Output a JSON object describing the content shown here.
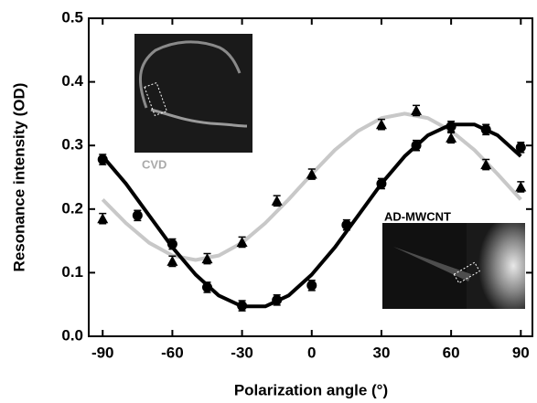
{
  "chart_data": {
    "type": "scatter",
    "xlabel": "Polarization angle (°)",
    "ylabel": "Resonance intensity (OD)",
    "xlim": [
      -96,
      95
    ],
    "ylim": [
      0,
      0.5
    ],
    "xticks": [
      -90,
      -60,
      -30,
      0,
      30,
      60,
      90
    ],
    "yticks": [
      {
        "value": 0,
        "label": "0.0"
      },
      0.1,
      0.2,
      0.3,
      0.4,
      0.5
    ],
    "series": [
      {
        "name": "CVD",
        "style": "fit",
        "color": "#c8c8c8",
        "x": [
          -90,
          -80,
          -70,
          -60,
          -50,
          -40,
          -30,
          -20,
          -10,
          0,
          10,
          20,
          30,
          40,
          50,
          60,
          70,
          80,
          90
        ],
        "values": [
          0.215,
          0.178,
          0.147,
          0.127,
          0.12,
          0.127,
          0.147,
          0.178,
          0.215,
          0.255,
          0.293,
          0.323,
          0.343,
          0.35,
          0.343,
          0.323,
          0.293,
          0.255,
          0.215
        ]
      },
      {
        "name": "AD-MWCNT",
        "style": "fit",
        "color": "#000000",
        "x": [
          -90,
          -80,
          -70,
          -60,
          -50,
          -40,
          -30,
          -20,
          -10,
          0,
          10,
          20,
          30,
          40,
          50,
          60,
          70,
          80,
          90
        ],
        "values": [
          0.283,
          0.24,
          0.19,
          0.14,
          0.097,
          0.064,
          0.047,
          0.047,
          0.064,
          0.097,
          0.14,
          0.19,
          0.24,
          0.283,
          0.316,
          0.333,
          0.333,
          0.316,
          0.283
        ]
      },
      {
        "style": "triangle",
        "color": "#000000",
        "error": 0.008,
        "x": [
          -90,
          -60,
          -45,
          -30,
          -15,
          0,
          30,
          45,
          60,
          75,
          90
        ],
        "values": [
          0.185,
          0.118,
          0.122,
          0.148,
          0.213,
          0.255,
          0.333,
          0.355,
          0.312,
          0.27,
          0.235
        ]
      },
      {
        "style": "circle",
        "color": "#000000",
        "error": 0.008,
        "x": [
          -90,
          -75,
          -60,
          -45,
          -30,
          -15,
          0,
          15,
          30,
          45,
          60,
          75,
          90
        ],
        "values": [
          0.278,
          0.19,
          0.145,
          0.077,
          0.048,
          0.057,
          0.08,
          0.175,
          0.24,
          0.3,
          0.33,
          0.325,
          0.297
        ]
      }
    ]
  }
}
